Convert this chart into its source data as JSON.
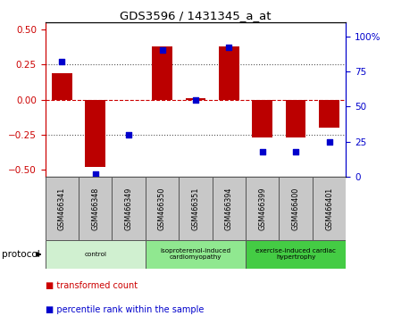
{
  "title": "GDS3596 / 1431345_a_at",
  "samples": [
    "GSM466341",
    "GSM466348",
    "GSM466349",
    "GSM466350",
    "GSM466351",
    "GSM466394",
    "GSM466399",
    "GSM466400",
    "GSM466401"
  ],
  "bar_values": [
    0.19,
    -0.48,
    0.0,
    0.38,
    0.01,
    0.38,
    -0.27,
    -0.27,
    -0.2
  ],
  "dot_values": [
    82,
    2,
    30,
    90,
    55,
    92,
    18,
    18,
    25
  ],
  "bar_color": "#bb0000",
  "dot_color": "#0000cc",
  "ylim_left": [
    -0.55,
    0.55
  ],
  "ylim_right": [
    0,
    110
  ],
  "yticks_left": [
    -0.5,
    -0.25,
    0.0,
    0.25,
    0.5
  ],
  "yticks_right": [
    0,
    25,
    50,
    75,
    100
  ],
  "ytick_labels_right": [
    "0",
    "25",
    "50",
    "75",
    "100%"
  ],
  "hlines_dotted": [
    0.25,
    -0.25
  ],
  "hline_zero_color": "#cc0000",
  "hline_dotted_color": "#555555",
  "groups": [
    {
      "label": "control",
      "start": 0,
      "end": 3,
      "color": "#d0f0d0"
    },
    {
      "label": "isoproterenol-induced\ncardiomyopathy",
      "start": 3,
      "end": 6,
      "color": "#90e890"
    },
    {
      "label": "exercise-induced cardiac\nhypertrophy",
      "start": 6,
      "end": 9,
      "color": "#44cc44"
    }
  ],
  "protocol_label": "protocol",
  "legend_items": [
    {
      "label": "transformed count",
      "color": "#cc0000"
    },
    {
      "label": "percentile rank within the sample",
      "color": "#0000cc"
    }
  ],
  "bg_color": "#ffffff",
  "plot_bg_color": "#ffffff",
  "tick_color_left": "#cc0000",
  "tick_color_right": "#0000cc",
  "cell_bg_color": "#c8c8c8",
  "bar_width": 0.6,
  "dot_size": 25
}
